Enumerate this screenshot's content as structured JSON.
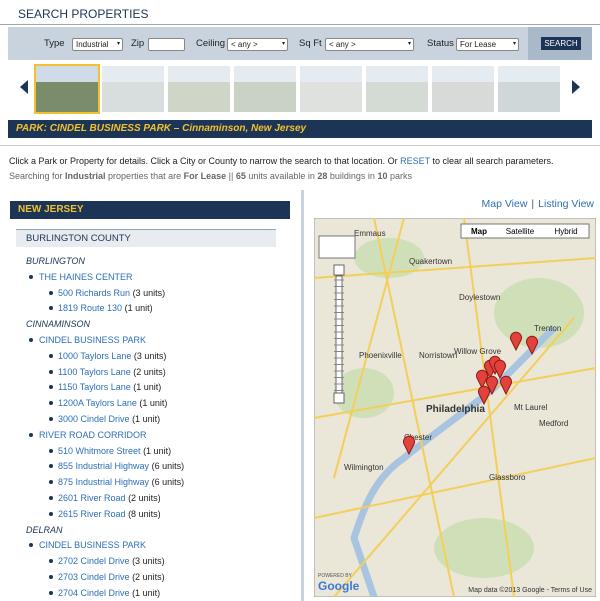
{
  "header": {
    "title": "SEARCH PROPERTIES"
  },
  "search": {
    "fields": [
      {
        "label": "Type",
        "value": "Industrial"
      },
      {
        "label": "Zip",
        "value": ""
      },
      {
        "label": "Ceiling",
        "value": "< any >"
      },
      {
        "label": "Sq Ft",
        "value": "< any >"
      },
      {
        "label": "Status",
        "value": "For Lease"
      }
    ],
    "button": "SEARCH"
  },
  "banner": {
    "text": "PARK: CINDEL BUSINESS PARK – Cinnaminson, New Jersey"
  },
  "instructions": {
    "line1": [
      "Click a Park or Property for details. Click a City or County to narrow the search to that location. Or ",
      "RESET",
      " to clear all search parameters."
    ],
    "line2": [
      "Searching for ",
      "Industrial",
      " properties that are ",
      "For Lease",
      " || ",
      "65",
      " units available in ",
      "28",
      " buildings in ",
      "10",
      " parks"
    ]
  },
  "state": "NEW JERSEY",
  "county": "BURLINGTON COUNTY",
  "cities": [
    {
      "name": "BURLINGTON",
      "parks": [
        {
          "name": "THE HAINES CENTER",
          "properties": [
            {
              "name": "500 Richards Run",
              "units": "(3 units)"
            },
            {
              "name": "1819 Route 130",
              "units": "(1 unit)"
            }
          ]
        }
      ]
    },
    {
      "name": "CINNAMINSON",
      "parks": [
        {
          "name": "CINDEL BUSINESS PARK",
          "properties": [
            {
              "name": "1000 Taylors Lane",
              "units": "(3 units)"
            },
            {
              "name": "1100 Taylors Lane",
              "units": "(2 units)"
            },
            {
              "name": "1150 Taylors Lane",
              "units": "(1 unit)"
            },
            {
              "name": "1200A Taylors Lane",
              "units": "(1 unit)"
            },
            {
              "name": "3000 Cindel Drive",
              "units": "(1 unit)"
            }
          ]
        },
        {
          "name": "RIVER ROAD CORRIDOR",
          "properties": [
            {
              "name": "510 Whitmore Street",
              "units": "(1 unit)"
            },
            {
              "name": "855 Industrial Highway",
              "units": "(6 units)"
            },
            {
              "name": "875 Industrial Highway",
              "units": "(6 units)"
            },
            {
              "name": "2601 River Road",
              "units": "(2 units)"
            },
            {
              "name": "2615 River Road",
              "units": "(8 units)"
            }
          ]
        }
      ]
    },
    {
      "name": "DELRAN",
      "parks": [
        {
          "name": "CINDEL BUSINESS PARK",
          "properties": [
            {
              "name": "2702 Cindel Drive",
              "units": "(3 units)"
            },
            {
              "name": "2703 Cindel Drive",
              "units": "(2 units)"
            },
            {
              "name": "2704 Cindel Drive",
              "units": "(1 unit)"
            }
          ]
        }
      ]
    }
  ],
  "map": {
    "views": [
      "Map View",
      "|",
      "Listing View"
    ],
    "types": [
      "Map",
      "Satellite",
      "Hybrid"
    ],
    "labels": [
      "Emmaus",
      "Quakertown",
      "Doylestown",
      "Trenton",
      "Phoenixville",
      "Norristown",
      "Willow Grove",
      "Philadelphia",
      "Mt Laurel",
      "Medford",
      "Chester",
      "Wilmington",
      "Glassboro"
    ],
    "attribution": "Map data ©2013 Google - Terms of Use",
    "powered": "POWERED BY",
    "google": "Google"
  }
}
